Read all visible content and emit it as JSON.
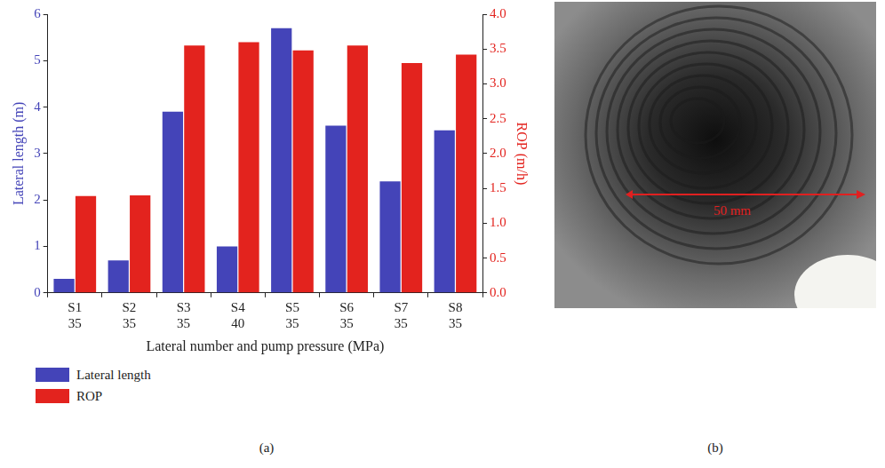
{
  "chart_data": {
    "type": "bar",
    "categories": [
      "S1",
      "S2",
      "S3",
      "S4",
      "S5",
      "S6",
      "S7",
      "S8"
    ],
    "pump_pressure": [
      35,
      35,
      35,
      40,
      35,
      35,
      35,
      35
    ],
    "x_label": "Lateral number and pump pressure (MPa)",
    "y_label": "Lateral length (m)",
    "y2_label": "ROP (m/h)",
    "series": [
      {
        "name": "Lateral length",
        "color": "#4444b8",
        "values": [
          0.3,
          0.7,
          3.9,
          1.0,
          5.7,
          3.6,
          2.4,
          3.5
        ]
      },
      {
        "name": "ROP",
        "color": "#e3231e",
        "axis": "y2",
        "values": [
          1.39,
          1.4,
          3.55,
          3.6,
          3.48,
          3.55,
          3.3,
          3.42
        ]
      }
    ],
    "ylim": [
      0,
      6
    ],
    "yticks": [
      0,
      1,
      2,
      3,
      4,
      5,
      6
    ],
    "y2lim": [
      0,
      4
    ],
    "y2ticks": [
      {
        "value": 0,
        "label": "0.0"
      },
      0.5,
      {
        "value": 1,
        "label": "1.0"
      },
      1.5,
      {
        "value": 2,
        "label": "2.0"
      },
      2.5,
      {
        "value": 3,
        "label": "3.0"
      },
      3.5,
      {
        "value": 4,
        "label": "4.0"
      }
    ],
    "grid": false,
    "legend": "bottom-left"
  },
  "panel_labels": [
    "(a)",
    "(b)"
  ],
  "photo": {
    "scale_label": "50 mm"
  }
}
